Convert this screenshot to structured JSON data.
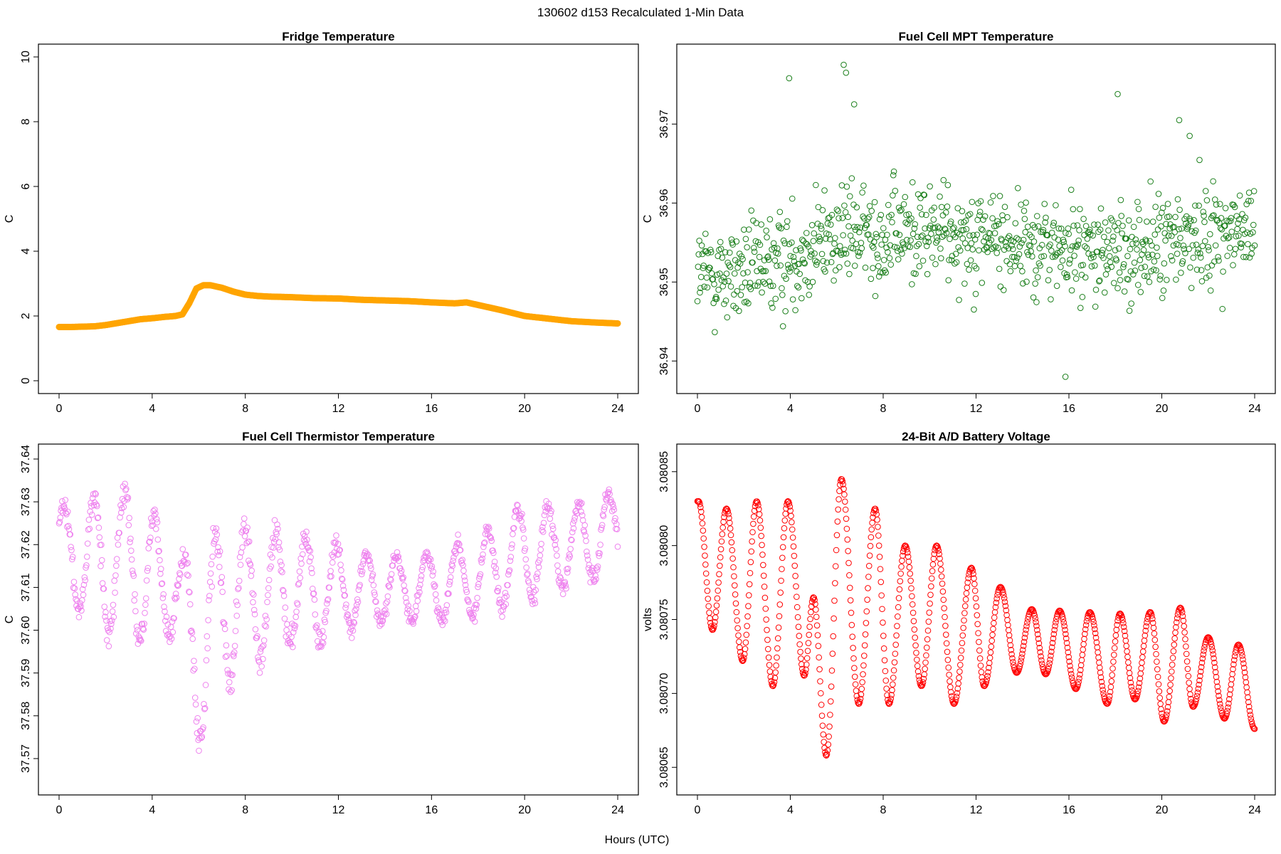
{
  "figure": {
    "title": "130602   d153   Recalculated 1-Min Data",
    "xlabel": "Hours (UTC)"
  },
  "chart_data": [
    {
      "id": "fridge",
      "type": "scatter",
      "title": "Fridge Temperature",
      "xlabel": "Hours (UTC)",
      "ylabel": "C",
      "color": "#FFA500",
      "marker": "filled",
      "xlim": [
        0,
        24
      ],
      "ylim": [
        0,
        10
      ],
      "xticks": [
        0,
        4,
        8,
        12,
        16,
        20,
        24
      ],
      "yticks": [
        0,
        2,
        4,
        6,
        8,
        10
      ],
      "ytick_labels": [
        "0",
        "2",
        "4",
        "6",
        "8",
        "10"
      ],
      "points": "1 per minute, 1440 points",
      "x": [
        0,
        0.5,
        1,
        1.5,
        2,
        2.5,
        3,
        3.5,
        4,
        4.5,
        5,
        5.3,
        5.6,
        5.9,
        6.2,
        6.5,
        7,
        7.5,
        8,
        8.5,
        9,
        10,
        11,
        12,
        13,
        14,
        15,
        16,
        17,
        17.5,
        18,
        19,
        20,
        21,
        22,
        23,
        24
      ],
      "y": [
        1.66,
        1.66,
        1.67,
        1.68,
        1.72,
        1.78,
        1.84,
        1.9,
        1.93,
        1.97,
        2.0,
        2.05,
        2.4,
        2.85,
        2.95,
        2.95,
        2.87,
        2.75,
        2.66,
        2.62,
        2.6,
        2.58,
        2.55,
        2.54,
        2.5,
        2.48,
        2.46,
        2.42,
        2.39,
        2.42,
        2.34,
        2.18,
        2.0,
        1.92,
        1.84,
        1.8,
        1.77
      ]
    },
    {
      "id": "mpt",
      "type": "scatter",
      "title": "Fuel Cell MPT Temperature",
      "xlabel": "Hours (UTC)",
      "ylabel": "C",
      "color": "#1B7F1B",
      "marker": "open-circle",
      "xlim": [
        0,
        24
      ],
      "ylim": [
        36.9375,
        36.9785
      ],
      "xticks": [
        0,
        4,
        8,
        12,
        16,
        20,
        24
      ],
      "yticks": [
        36.94,
        36.95,
        36.96,
        36.97
      ],
      "ytick_labels": [
        "36.94",
        "36.95",
        "36.96",
        "36.97"
      ],
      "points": "1 per 1.6 minutes, 900 points",
      "baseline_x": [
        0,
        2,
        4,
        5,
        6,
        8,
        10,
        12,
        14,
        16,
        18,
        20,
        22,
        24
      ],
      "baseline_y": [
        36.951,
        36.951,
        36.953,
        36.955,
        36.956,
        36.956,
        36.9565,
        36.956,
        36.955,
        36.954,
        36.9535,
        36.9545,
        36.9565,
        36.956
      ],
      "spread": 0.0045,
      "outliers": [
        [
          3.95,
          36.9758
        ],
        [
          6.3,
          36.9775
        ],
        [
          6.4,
          36.9765
        ],
        [
          6.75,
          36.9725
        ],
        [
          18.1,
          36.9738
        ],
        [
          15.85,
          36.938
        ],
        [
          20.75,
          36.9705
        ],
        [
          21.2,
          36.9685
        ]
      ]
    },
    {
      "id": "thermistor",
      "type": "scatter",
      "title": "Fuel Cell Thermistor Temperature",
      "xlabel": "Hours (UTC)",
      "ylabel": "C",
      "color": "#EE82EE",
      "marker": "open-circle",
      "xlim": [
        0,
        24
      ],
      "ylim": [
        37.5645,
        37.6405
      ],
      "xticks": [
        0,
        4,
        8,
        12,
        16,
        20,
        24
      ],
      "yticks": [
        37.57,
        37.58,
        37.59,
        37.6,
        37.61,
        37.62,
        37.63,
        37.64
      ],
      "ytick_labels": [
        "37.57",
        "37.58",
        "37.59",
        "37.60",
        "37.61",
        "37.62",
        "37.63",
        "37.64"
      ],
      "points": "1 per 1.6 minutes, 900 points",
      "cycle_hours": 1.3,
      "upper_x": [
        0,
        2,
        3,
        4,
        5,
        6,
        7,
        8,
        10,
        11,
        12,
        14,
        16,
        18,
        20,
        22,
        24
      ],
      "upper_y": [
        37.631,
        37.636,
        37.636,
        37.632,
        37.622,
        37.619,
        37.632,
        37.628,
        37.626,
        37.624,
        37.622,
        37.619,
        37.62,
        37.624,
        37.632,
        37.631,
        37.635
      ],
      "lower_x": [
        0,
        2,
        3,
        4,
        5,
        6,
        7,
        8,
        10,
        11,
        12,
        14,
        16,
        18,
        20,
        22,
        24
      ],
      "lower_y": [
        37.607,
        37.595,
        37.597,
        37.59,
        37.598,
        37.566,
        37.582,
        37.587,
        37.593,
        37.593,
        37.597,
        37.6,
        37.6,
        37.601,
        37.604,
        37.608,
        37.612
      ]
    },
    {
      "id": "battery",
      "type": "scatter",
      "title": "24-Bit A/D Battery Voltage",
      "xlabel": "Hours (UTC)",
      "ylabel": "volts",
      "color": "#FF0000",
      "marker": "open-circle",
      "xlim": [
        0,
        24
      ],
      "ylim": [
        3.08064,
        3.08086
      ],
      "xticks": [
        0,
        4,
        8,
        12,
        16,
        20,
        24
      ],
      "yticks": [
        3.08065,
        3.0807,
        3.08075,
        3.0808,
        3.08085
      ],
      "ytick_labels": [
        "3.08065",
        "3.08070",
        "3.08075",
        "3.08080",
        "3.08085"
      ],
      "points": "1 per 1.6 minutes, 900 points",
      "peaks": [
        [
          0.05,
          3.08083
        ],
        [
          1.25,
          3.080825
        ],
        [
          2.55,
          3.08083
        ],
        [
          3.9,
          3.08083
        ],
        [
          5.0,
          3.080765
        ],
        [
          6.2,
          3.080845
        ],
        [
          7.65,
          3.080825
        ],
        [
          8.95,
          3.0808
        ],
        [
          10.3,
          3.0808
        ],
        [
          11.8,
          3.080785
        ],
        [
          13.05,
          3.080772
        ],
        [
          14.4,
          3.080757
        ],
        [
          15.6,
          3.080756
        ],
        [
          16.9,
          3.080755
        ],
        [
          18.2,
          3.080754
        ],
        [
          19.5,
          3.080755
        ],
        [
          20.8,
          3.080758
        ],
        [
          22.0,
          3.080738
        ],
        [
          23.3,
          3.080733
        ]
      ],
      "troughs": [
        [
          0.65,
          3.080743
        ],
        [
          1.95,
          3.080722
        ],
        [
          3.25,
          3.080705
        ],
        [
          4.6,
          3.080712
        ],
        [
          5.55,
          3.080658
        ],
        [
          6.95,
          3.080693
        ],
        [
          8.25,
          3.080693
        ],
        [
          9.65,
          3.080705
        ],
        [
          11.05,
          3.080693
        ],
        [
          12.35,
          3.080705
        ],
        [
          13.75,
          3.080714
        ],
        [
          15.0,
          3.080713
        ],
        [
          16.3,
          3.080703
        ],
        [
          17.65,
          3.080693
        ],
        [
          18.85,
          3.080696
        ],
        [
          20.1,
          3.080681
        ],
        [
          21.35,
          3.080691
        ],
        [
          22.7,
          3.080683
        ],
        [
          24.0,
          3.080676
        ]
      ]
    }
  ]
}
